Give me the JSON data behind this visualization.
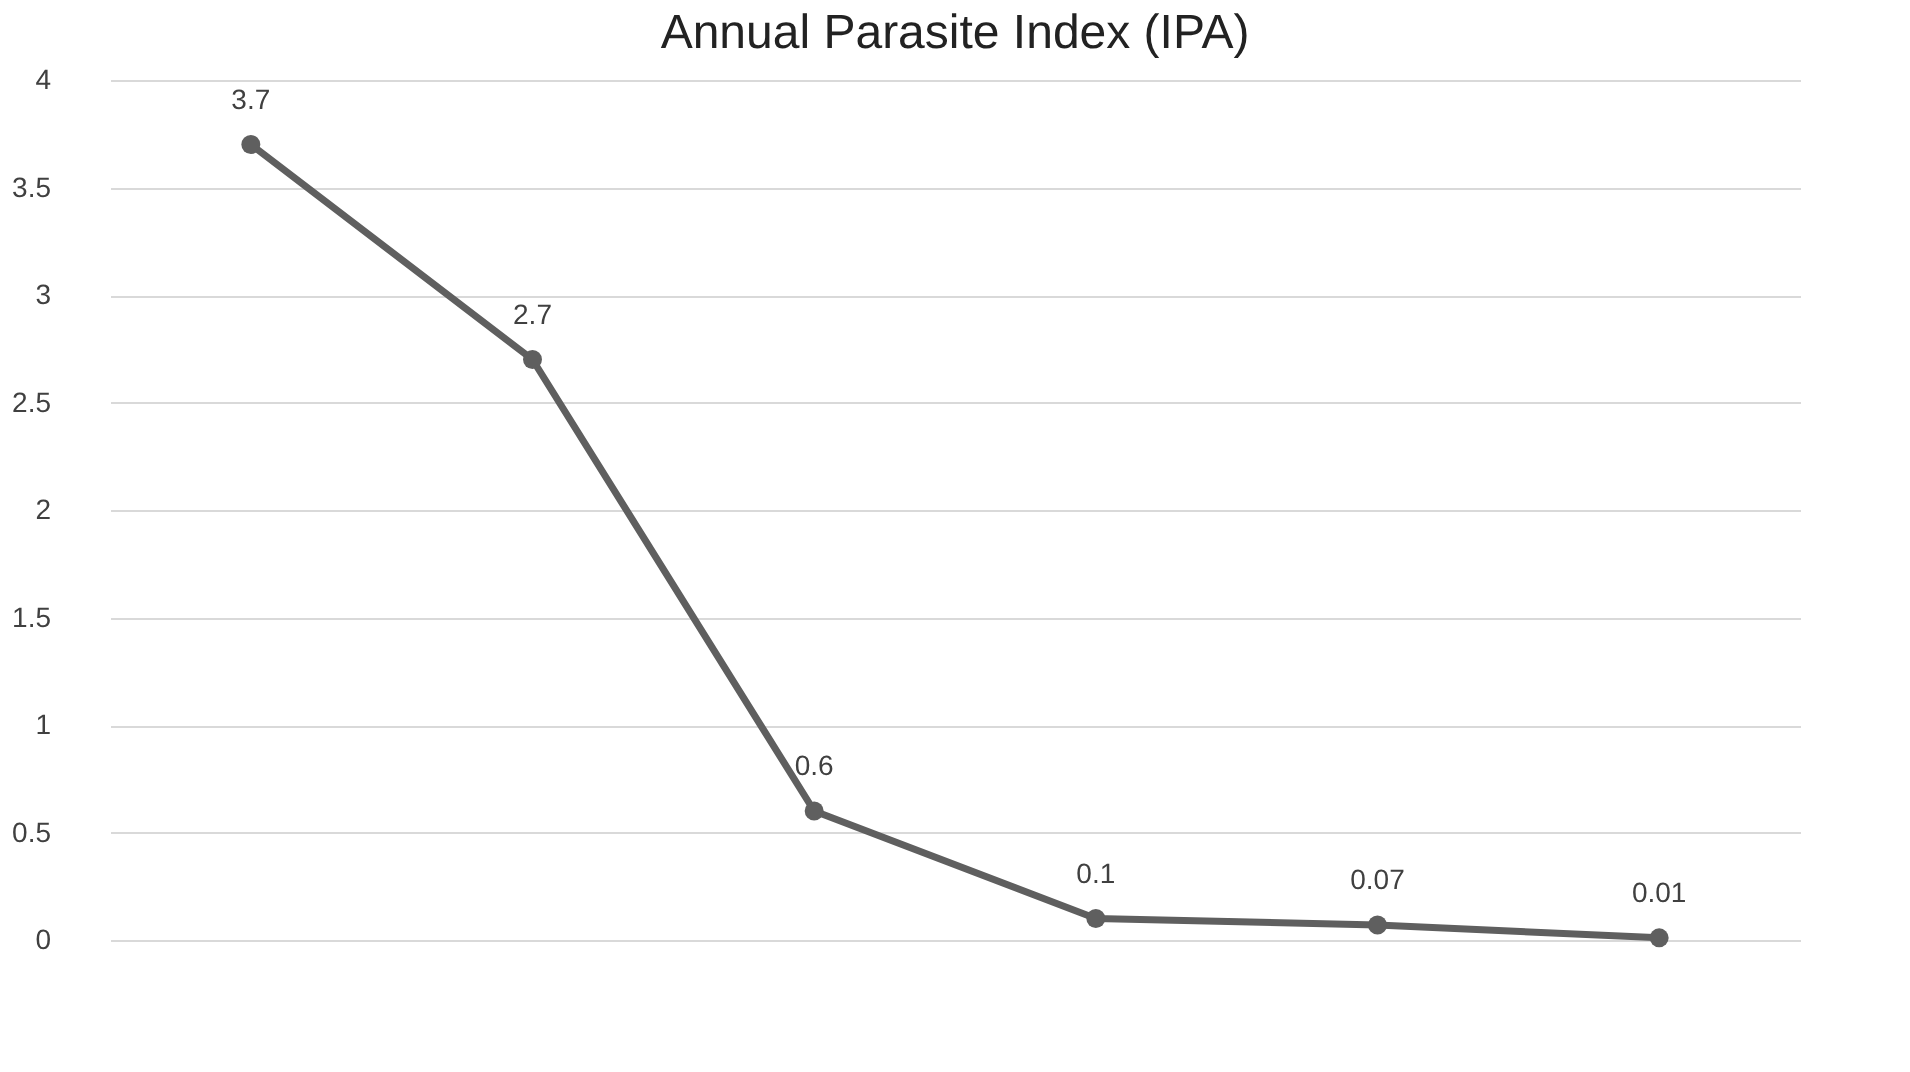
{
  "chart_data": {
    "type": "line",
    "title": "Annual Parasite Index (IPA)",
    "categories": [
      null,
      null,
      null,
      null,
      null,
      null
    ],
    "series": [
      {
        "color": "#5f5f5f",
        "values": [
          3.7,
          2.7,
          0.6,
          0.1,
          0.07,
          0.01
        ]
      }
    ],
    "ylim": [
      0,
      4
    ],
    "yticks": [
      0,
      0.5,
      1,
      1.5,
      2,
      2.5,
      3,
      3.5,
      4
    ],
    "grid": "y",
    "marker": "circle",
    "data_labels": true,
    "tick_labels": "y"
  }
}
